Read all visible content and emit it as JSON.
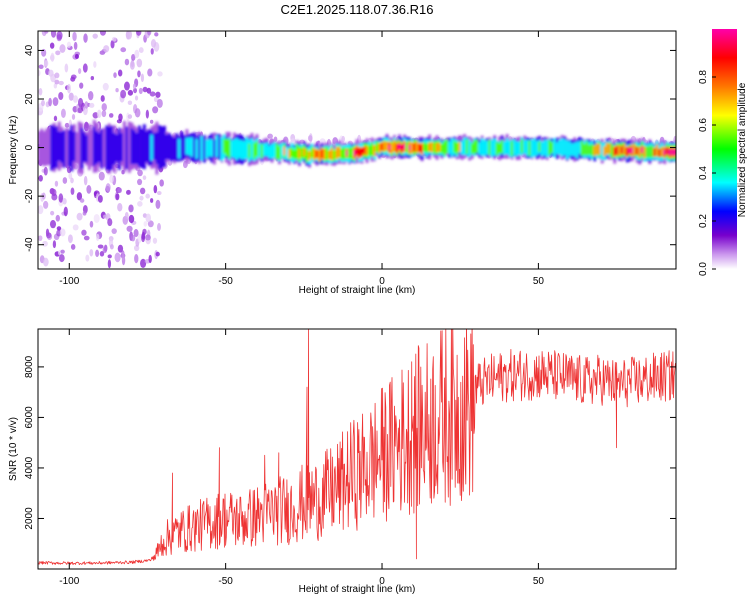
{
  "title": "C2E1.2025.118.07.36.R16",
  "chart_data": [
    {
      "type": "heatmap",
      "xlabel": "Height of straight line (km)",
      "ylabel": "Frequency (Hz)",
      "xlim": [
        -110,
        94
      ],
      "ylim": [
        -50,
        48
      ],
      "x_ticks": [
        -100,
        -50,
        0,
        50
      ],
      "y_ticks": [
        40,
        20,
        0,
        -20,
        -40
      ],
      "colorbar": {
        "label": "Normalized spectral amplitude",
        "range": [
          0,
          1
        ],
        "ticks": [
          0.0,
          0.2,
          0.4,
          0.6,
          0.8
        ],
        "tick_labels": [
          "0.0",
          "0.2",
          "0.4",
          "0.6",
          "0.8"
        ],
        "colormap": [
          "#ffffff",
          "#cc99ee",
          "#7700cc",
          "#0000ff",
          "#00ffff",
          "#00ff00",
          "#ffff00",
          "#ff7700",
          "#ff0000",
          "#ff00aa"
        ]
      },
      "ridge": {
        "center_frequency_hz": [
          [
            -110,
            0
          ],
          [
            -70,
            0
          ],
          [
            -50,
            0
          ],
          [
            -30,
            -2
          ],
          [
            -20,
            -3
          ],
          [
            -10,
            -2
          ],
          [
            0,
            0
          ],
          [
            20,
            0
          ],
          [
            50,
            0
          ],
          [
            94,
            -2
          ]
        ],
        "peak_amplitude": [
          [
            -110,
            0.25
          ],
          [
            -75,
            0.35
          ],
          [
            -60,
            0.45
          ],
          [
            -40,
            0.55
          ],
          [
            -22,
            0.8
          ],
          [
            -10,
            0.85
          ],
          [
            2,
            0.95
          ],
          [
            30,
            0.6
          ],
          [
            60,
            0.55
          ],
          [
            80,
            0.9
          ],
          [
            94,
            0.95
          ]
        ],
        "noise_spread_hz": [
          [
            -110,
            48
          ],
          [
            -72,
            48
          ],
          [
            -70,
            8
          ],
          [
            -50,
            6
          ],
          [
            -20,
            4
          ],
          [
            0,
            3
          ],
          [
            94,
            3
          ]
        ]
      }
    },
    {
      "type": "line",
      "xlabel": "Height of straight line (km)",
      "ylabel": "SNR (10 * v/v)",
      "xlim": [
        -110,
        94
      ],
      "ylim": [
        0,
        9500
      ],
      "x_ticks": [
        -100,
        -50,
        0,
        50
      ],
      "y_ticks": [
        2000,
        4000,
        6000,
        8000
      ],
      "color": "#ee3333",
      "series": [
        {
          "x": [
            -110,
            -100,
            -90,
            -80,
            -74,
            -72,
            -70,
            -65,
            -60,
            -55,
            -50,
            -45,
            -40,
            -35,
            -30,
            -25,
            -20,
            -15,
            -10,
            -5,
            0,
            5,
            10,
            15,
            20,
            25,
            30,
            35,
            40,
            45,
            50,
            55,
            60,
            65,
            70,
            75,
            80,
            85,
            90,
            94
          ],
          "values": [
            250,
            230,
            240,
            270,
            350,
            700,
            1300,
            1700,
            1900,
            2100,
            2300,
            2200,
            2400,
            2600,
            2700,
            3000,
            3200,
            3600,
            4200,
            4600,
            5200,
            5700,
            6200,
            6600,
            7000,
            7300,
            7600,
            7900,
            8050,
            8100,
            8150,
            8050,
            7950,
            7800,
            7900,
            7700,
            7800,
            7900,
            8000,
            8050
          ]
        }
      ],
      "spikes": [
        [
          -23.5,
          9500
        ],
        [
          -24,
          7200
        ],
        [
          9.5,
          8200
        ],
        [
          -52,
          4800
        ],
        [
          -37.5,
          4500
        ],
        [
          -67,
          3800
        ],
        [
          -33,
          4600
        ],
        [
          11,
          400
        ],
        [
          75,
          4800
        ]
      ]
    }
  ]
}
